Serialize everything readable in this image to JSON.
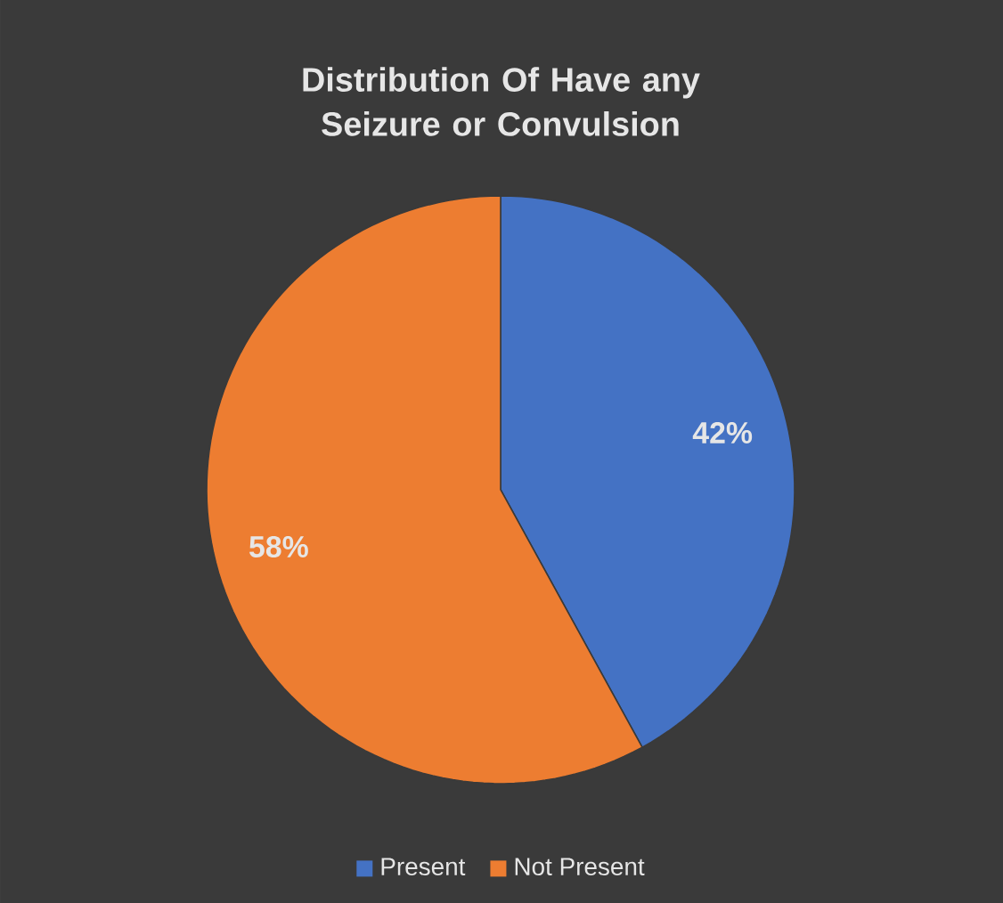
{
  "chart_data": {
    "type": "pie",
    "title": "Distribution Of Have any Seizure or Convulsion",
    "categories": [
      "Present",
      "Not Present"
    ],
    "values": [
      42,
      58
    ],
    "colors": [
      "#4472c4",
      "#ed7d31"
    ],
    "value_labels": [
      "42%",
      "58%"
    ],
    "legend": "bottom"
  }
}
